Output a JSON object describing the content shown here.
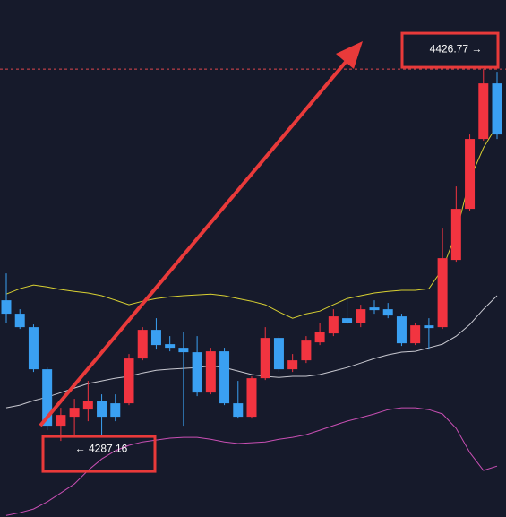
{
  "chart_data": {
    "type": "candlestick",
    "ylim": [
      4258.6,
      4452.7
    ],
    "up_color": "#f23440",
    "down_color": "#3aa0f2",
    "candles": {
      "open": [
        4339.97,
        4334.93,
        4329.88,
        4314.07,
        4292.88,
        4296.24,
        4298.93,
        4302.29,
        4301.29,
        4301.29,
        4318.11,
        4328.87,
        4323.49,
        4322.14,
        4320.46,
        4305.32,
        4320.8,
        4301.29,
        4296.24,
        4310.7,
        4325.84,
        4314.07,
        4317.43,
        4324.16,
        4327.53,
        4333.24,
        4331.56,
        4337.28,
        4336.61,
        4333.92,
        4323.82,
        4330.55,
        4329.88,
        4355.11,
        4374.29,
        4400.53,
        4421.38
      ],
      "high": [
        4350.06,
        4336.61,
        4330.89,
        4314.74,
        4299.6,
        4302.97,
        4309.7,
        4304.65,
        4304.65,
        4319.79,
        4329.88,
        4333.24,
        4326.52,
        4328.2,
        4326.52,
        4322.14,
        4322.14,
        4309.7,
        4311.38,
        4329.88,
        4326.52,
        4319.79,
        4326.52,
        4331.56,
        4336.61,
        4341.65,
        4338.29,
        4339.97,
        4338.96,
        4334.93,
        4331.56,
        4333.24,
        4366.89,
        4382.7,
        4402.21,
        4426.77,
        4425.76
      ],
      "low": [
        4331.56,
        4329.21,
        4313.06,
        4291.19,
        4287.16,
        4289.51,
        4294.56,
        4289.51,
        4294.56,
        4300.61,
        4317.43,
        4321.47,
        4320.8,
        4292.88,
        4303.98,
        4304.65,
        4300.61,
        4295.57,
        4295.57,
        4310.03,
        4313.06,
        4313.06,
        4316.42,
        4323.15,
        4326.52,
        4330.89,
        4329.88,
        4334.93,
        4333.24,
        4322.82,
        4323.15,
        4321.47,
        4329.21,
        4354.44,
        4373.61,
        4399.85,
        4400.53
      ],
      "close": [
        4334.93,
        4329.88,
        4314.07,
        4292.88,
        4296.91,
        4299.6,
        4302.29,
        4296.24,
        4296.24,
        4318.11,
        4328.87,
        4323.15,
        4322.14,
        4320.46,
        4305.32,
        4320.8,
        4301.29,
        4296.24,
        4310.7,
        4325.84,
        4314.07,
        4317.43,
        4324.83,
        4328.2,
        4333.92,
        4331.56,
        4336.61,
        4336.27,
        4334.25,
        4323.82,
        4330.55,
        4329.54,
        4355.78,
        4374.29,
        4400.53,
        4421.38,
        4402.21
      ]
    },
    "lines": [
      {
        "color": "#d8d032",
        "values": [
          4342.3,
          4344.3,
          4345.7,
          4345.0,
          4344.0,
          4343.3,
          4342.7,
          4341.7,
          4340.0,
          4338.3,
          4339.6,
          4340.6,
          4341.3,
          4341.7,
          4342.0,
          4342.3,
          4341.7,
          4340.6,
          4339.6,
          4338.3,
          4335.6,
          4333.2,
          4334.9,
          4335.9,
          4338.3,
          4340.6,
          4341.7,
          4342.7,
          4343.3,
          4343.7,
          4343.7,
          4344.3,
          4351.7,
          4365.2,
          4385.4,
          4397.2,
          4405.6
        ]
      },
      {
        "color": "#c8c8d0",
        "values": [
          4299.6,
          4300.6,
          4302.3,
          4303.6,
          4305.3,
          4307.0,
          4308.7,
          4309.7,
          4310.7,
          4311.4,
          4312.7,
          4313.7,
          4314.1,
          4314.4,
          4314.7,
          4315.4,
          4314.7,
          4313.4,
          4312.1,
          4311.4,
          4311.0,
          4311.4,
          4311.4,
          4312.1,
          4313.4,
          4314.7,
          4316.4,
          4318.1,
          4319.5,
          4320.5,
          4320.8,
          4322.1,
          4323.5,
          4326.5,
          4330.9,
          4336.6,
          4341.7
        ]
      },
      {
        "color": "#c94fb4",
        "values": [
          4259.2,
          4260.2,
          4261.6,
          4264.3,
          4267.6,
          4271.0,
          4276.1,
          4280.4,
          4283.5,
          4285.5,
          4286.8,
          4287.5,
          4288.2,
          4288.5,
          4288.5,
          4287.8,
          4286.8,
          4286.2,
          4286.5,
          4286.8,
          4287.8,
          4288.5,
          4289.5,
          4291.2,
          4292.9,
          4294.6,
          4295.9,
          4297.3,
          4298.9,
          4299.6,
          4299.6,
          4298.9,
          4297.3,
          4291.9,
          4282.8,
          4276.1,
          4277.7
        ]
      }
    ],
    "annotations": [
      {
        "text": "4426.77 →",
        "value": 4426.77
      },
      {
        "text": "← 4287.16",
        "value": 4287.16
      }
    ]
  }
}
